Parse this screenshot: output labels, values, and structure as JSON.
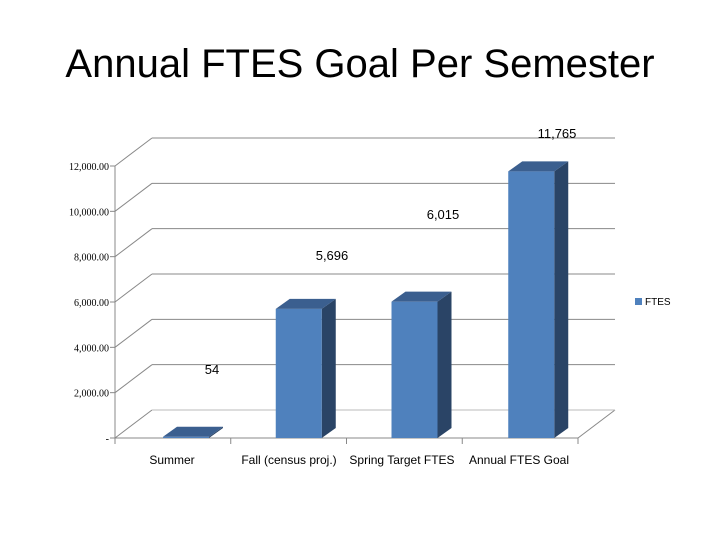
{
  "slide": {
    "title": "Annual FTES Goal Per Semester"
  },
  "chart_data": {
    "type": "bar",
    "title": "Annual FTES Goal Per Semester",
    "categories": [
      "Summer",
      "Fall (census proj.)",
      "Spring Target FTES",
      "Annual FTES Goal"
    ],
    "series": [
      {
        "name": "FTES",
        "values": [
          54,
          5696,
          6015,
          11765
        ],
        "data_labels": [
          "54",
          "5,696",
          "6,015",
          "11,765"
        ]
      }
    ],
    "y_ticks": [
      0,
      2000,
      4000,
      6000,
      8000,
      10000,
      12000
    ],
    "y_tick_labels": [
      "-",
      "2,000.00",
      "4,000.00",
      "6,000.00",
      "8,000.00",
      "10,000.00",
      "12,000.00"
    ],
    "ylim": [
      0,
      12000
    ],
    "style": "3d-column",
    "legend": "right",
    "colors": {
      "front": "#4f81bd",
      "top": "#3b5f8f",
      "side": "#2a4466"
    }
  }
}
